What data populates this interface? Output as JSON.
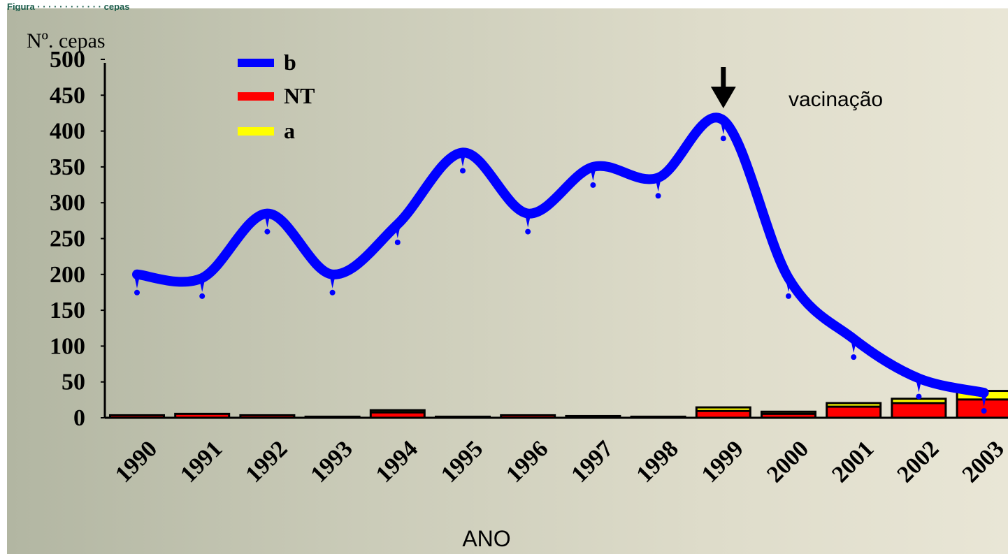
{
  "header_text": "Figura · · · · · · · · · · · · cepas",
  "chart_data": {
    "type": "bar+line",
    "ylabel": "Nº. cepas",
    "xlabel": "ANO",
    "annotation": "vacinação",
    "annotation_year": "1999",
    "ylim": [
      0,
      500
    ],
    "yticks": [
      0,
      50,
      100,
      150,
      200,
      250,
      300,
      350,
      400,
      450,
      500
    ],
    "categories": [
      "1990",
      "1991",
      "1992",
      "1993",
      "1994",
      "1995",
      "1996",
      "1997",
      "1998",
      "1999",
      "2000",
      "2001",
      "2002",
      "2003"
    ],
    "series": [
      {
        "name": "b",
        "type": "line",
        "color": "#0000ff",
        "values": [
          200,
          195,
          285,
          200,
          270,
          370,
          285,
          350,
          335,
          415,
          195,
          110,
          55,
          35
        ]
      },
      {
        "name": "NT",
        "type": "bar",
        "color": "#ff0000",
        "values": [
          3,
          5,
          3,
          1,
          7,
          1,
          3,
          2,
          1,
          9,
          5,
          15,
          20,
          25
        ]
      },
      {
        "name": "a",
        "type": "bar",
        "color": "#ffff00",
        "values": [
          0,
          0,
          0,
          0,
          3,
          0,
          0,
          0,
          0,
          5,
          3,
          5,
          6,
          12
        ]
      }
    ],
    "legend_position": "top-left"
  }
}
